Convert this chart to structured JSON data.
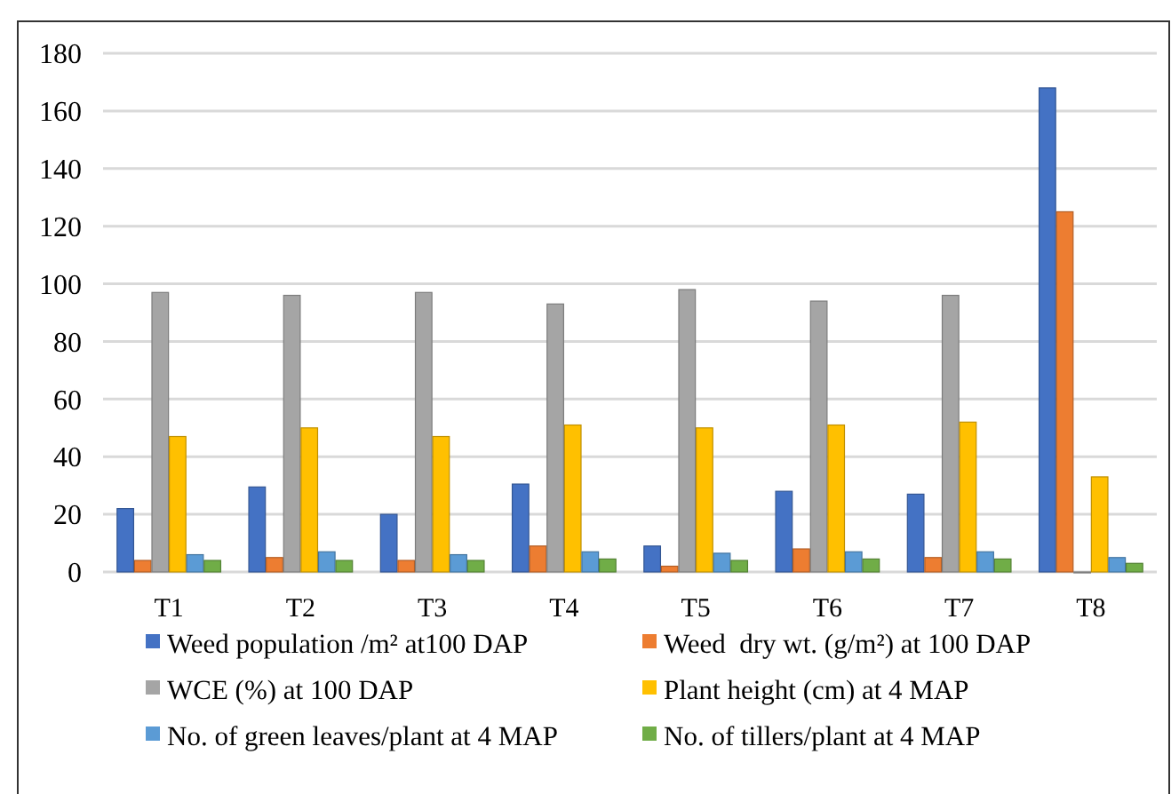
{
  "chart_data": {
    "type": "bar",
    "categories": [
      "T1",
      "T2",
      "T3",
      "T4",
      "T5",
      "T6",
      "T7",
      "T8"
    ],
    "series": [
      {
        "name": "Weed population /m² at100 DAP",
        "color": "#4472c4",
        "values": [
          22,
          29.5,
          20,
          30.5,
          9,
          28,
          27,
          168
        ]
      },
      {
        "name": "Weed  dry wt. (g/m²) at 100 DAP",
        "color": "#ed7d31",
        "values": [
          4,
          5,
          4,
          9,
          2,
          8,
          5,
          125
        ]
      },
      {
        "name": "WCE (%) at 100 DAP",
        "color": "#a5a5a5",
        "values": [
          97,
          96,
          97,
          93,
          98,
          94,
          96,
          0
        ]
      },
      {
        "name": "Plant height (cm) at 4 MAP",
        "color": "#ffc000",
        "values": [
          47,
          50,
          47,
          51,
          50,
          51,
          52,
          33
        ]
      },
      {
        "name": "No. of green leaves/plant at 4 MAP",
        "color": "#5b9bd5",
        "values": [
          6,
          7,
          6,
          7,
          6.5,
          7,
          7,
          5
        ]
      },
      {
        "name": "No. of tillers/plant at 4 MAP",
        "color": "#70ad47",
        "values": [
          4,
          4,
          4,
          4.5,
          4,
          4.5,
          4.5,
          3
        ]
      }
    ],
    "ylim": [
      0,
      180
    ],
    "yticks": [
      0,
      20,
      40,
      60,
      80,
      100,
      120,
      140,
      160,
      180
    ],
    "grid": "y",
    "legend": "bottom"
  }
}
